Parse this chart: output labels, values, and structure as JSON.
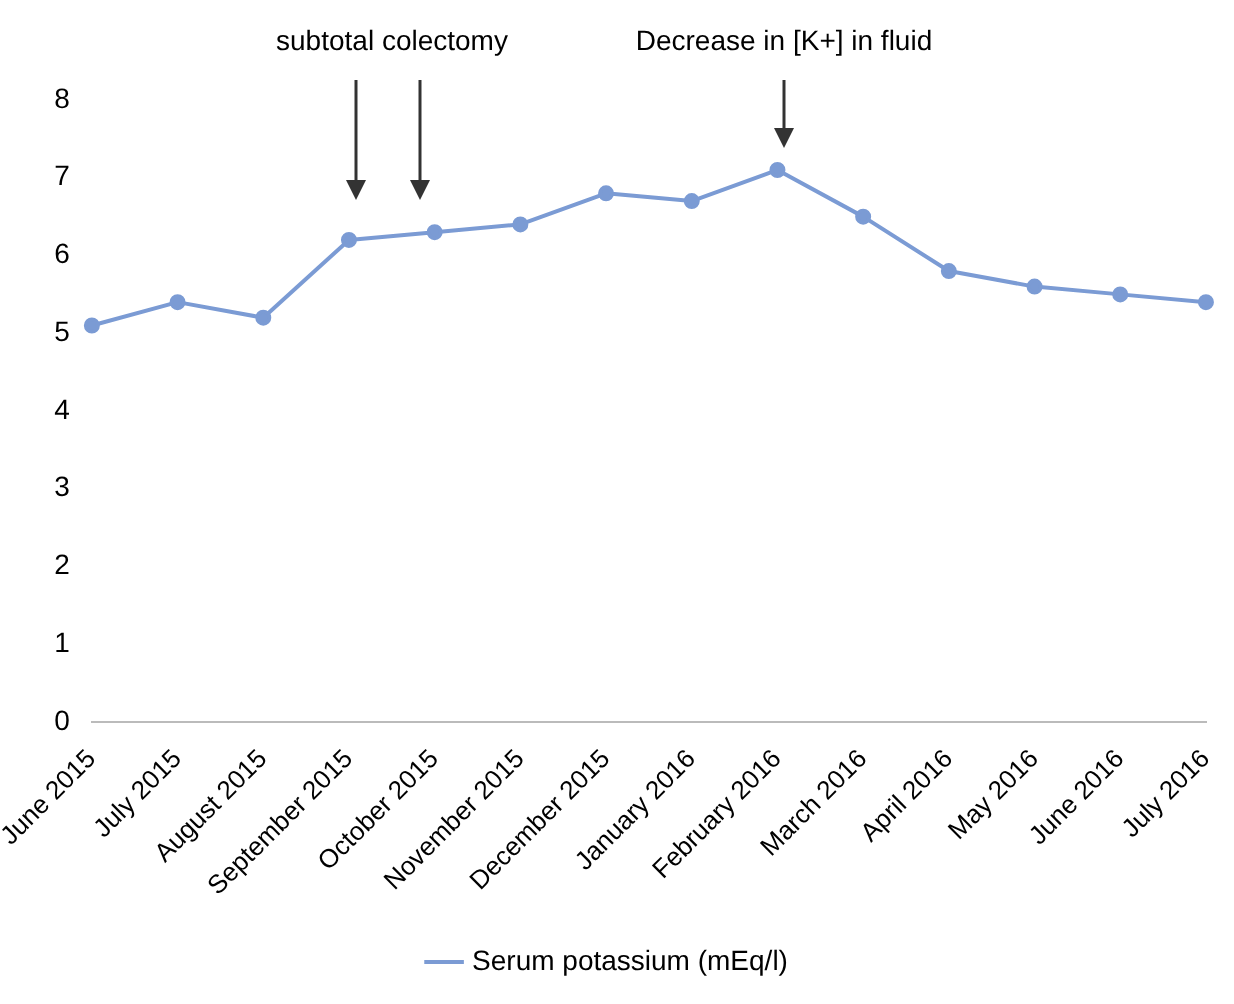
{
  "chart_data": {
    "type": "line",
    "categories": [
      "June 2015",
      "July 2015",
      "August 2015",
      "September 2015",
      "October 2015",
      "November 2015",
      "December 2015",
      "January 2016",
      "February 2016",
      "March 2016",
      "April 2016",
      "May 2016",
      "June 2016",
      "July 2016"
    ],
    "series": [
      {
        "name": "Serum potassium (mEq/l)",
        "color": "#7b9bd4",
        "values": [
          5.1,
          5.4,
          5.2,
          6.2,
          6.3,
          6.4,
          6.8,
          6.7,
          7.1,
          6.5,
          5.8,
          5.6,
          5.5,
          5.4
        ]
      }
    ],
    "ylim": [
      0,
      8
    ],
    "yticks": [
      0,
      1,
      2,
      3,
      4,
      5,
      6,
      7,
      8
    ],
    "annotations": [
      "subtotal colectomy",
      "Decrease in [K+] in fluid"
    ],
    "grid": false,
    "legend": "bottom",
    "marker": "circle",
    "line_style": "solid"
  }
}
